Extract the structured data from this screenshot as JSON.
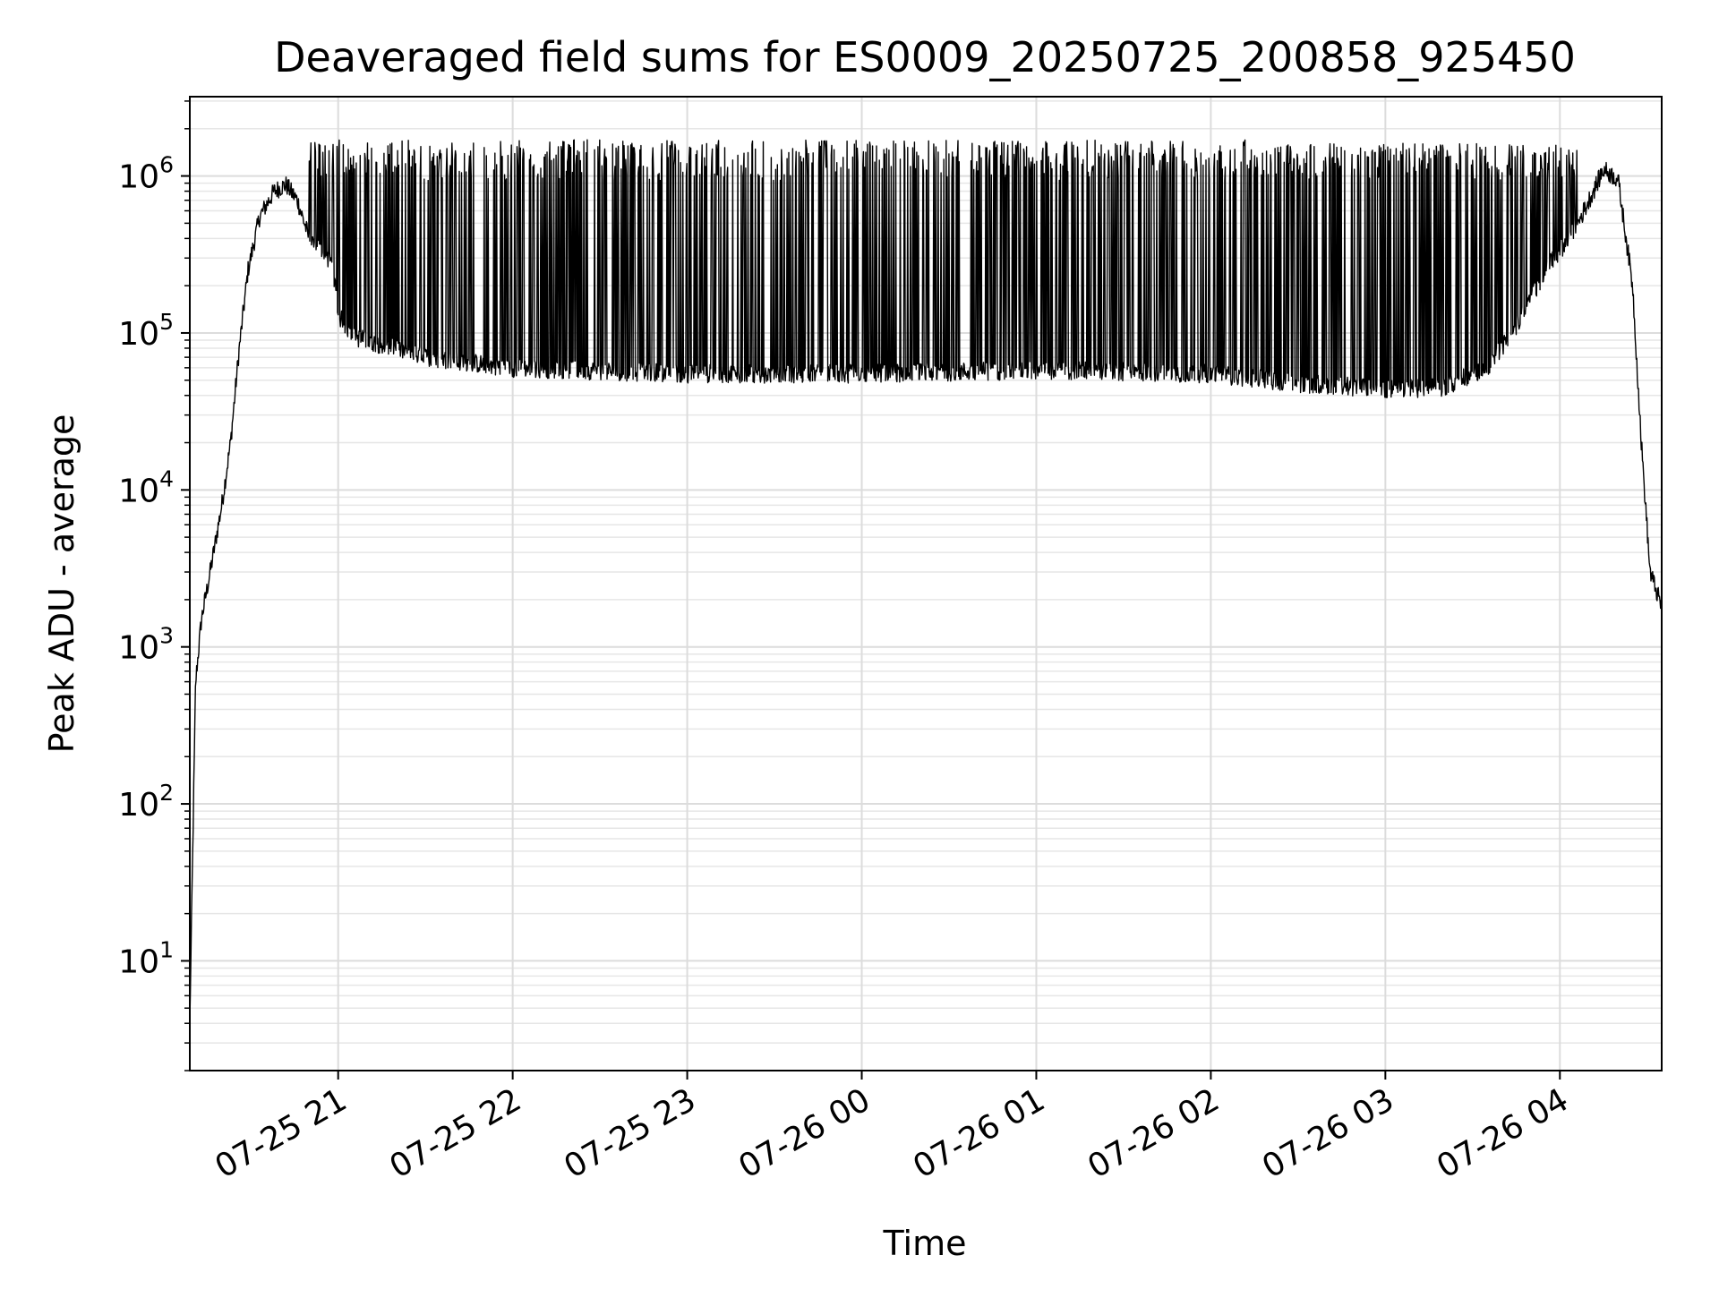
{
  "chart_data": {
    "type": "line",
    "title": "Deaveraged field sums for ES0009_20250725_200858_925450",
    "xlabel": "Time",
    "ylabel": "Peak ADU - average",
    "yscale": "log",
    "grid": true,
    "ylim": [
      2,
      3200000
    ],
    "xlim": [
      "2025-07-25 20:09",
      "2025-07-26 04:35"
    ],
    "xticks": [
      {
        "t": "2025-07-25 21:00",
        "label": "07-25 21"
      },
      {
        "t": "2025-07-25 22:00",
        "label": "07-25 22"
      },
      {
        "t": "2025-07-25 23:00",
        "label": "07-25 23"
      },
      {
        "t": "2025-07-26 00:00",
        "label": "07-26 00"
      },
      {
        "t": "2025-07-26 01:00",
        "label": "07-26 01"
      },
      {
        "t": "2025-07-26 02:00",
        "label": "07-26 02"
      },
      {
        "t": "2025-07-26 03:00",
        "label": "07-26 03"
      },
      {
        "t": "2025-07-26 04:00",
        "label": "07-26 04"
      }
    ],
    "yticks": [
      {
        "value": 10,
        "base": "10",
        "exp": "1"
      },
      {
        "value": 100,
        "base": "10",
        "exp": "2"
      },
      {
        "value": 1000,
        "base": "10",
        "exp": "3"
      },
      {
        "value": 10000,
        "base": "10",
        "exp": "4"
      },
      {
        "value": 100000,
        "base": "10",
        "exp": "5"
      },
      {
        "value": 1000000,
        "base": "10",
        "exp": "6"
      }
    ],
    "series": [
      {
        "color": "#000000",
        "baseline_points": [
          {
            "t": "2025-07-25 20:09",
            "y": 4
          },
          {
            "t": "2025-07-25 20:10",
            "y": 50
          },
          {
            "t": "2025-07-25 20:11",
            "y": 600
          },
          {
            "t": "2025-07-25 20:13",
            "y": 1500
          },
          {
            "t": "2025-07-25 20:16",
            "y": 3000
          },
          {
            "t": "2025-07-25 20:20",
            "y": 8000
          },
          {
            "t": "2025-07-25 20:23",
            "y": 20000
          },
          {
            "t": "2025-07-25 20:26",
            "y": 80000
          },
          {
            "t": "2025-07-25 20:29",
            "y": 250000
          },
          {
            "t": "2025-07-25 20:33",
            "y": 550000
          },
          {
            "t": "2025-07-25 20:38",
            "y": 800000
          },
          {
            "t": "2025-07-25 20:42",
            "y": 880000
          },
          {
            "t": "2025-07-25 20:46",
            "y": 700000
          },
          {
            "t": "2025-07-25 20:50",
            "y": 400000
          },
          {
            "t": "2025-07-25 20:58",
            "y": 280000
          },
          {
            "t": "2025-07-25 21:00",
            "y": 130000
          },
          {
            "t": "2025-07-25 21:05",
            "y": 95000
          },
          {
            "t": "2025-07-25 21:30",
            "y": 70000
          },
          {
            "t": "2025-07-25 22:00",
            "y": 60000
          },
          {
            "t": "2025-07-25 23:00",
            "y": 55000
          },
          {
            "t": "2025-07-26 00:00",
            "y": 55000
          },
          {
            "t": "2025-07-26 01:00",
            "y": 58000
          },
          {
            "t": "2025-07-26 02:00",
            "y": 55000
          },
          {
            "t": "2025-07-26 02:30",
            "y": 48000
          },
          {
            "t": "2025-07-26 03:00",
            "y": 44000
          },
          {
            "t": "2025-07-26 03:20",
            "y": 45000
          },
          {
            "t": "2025-07-26 03:35",
            "y": 60000
          },
          {
            "t": "2025-07-26 03:45",
            "y": 110000
          },
          {
            "t": "2025-07-26 03:55",
            "y": 250000
          },
          {
            "t": "2025-07-26 04:05",
            "y": 450000
          },
          {
            "t": "2025-07-26 04:10",
            "y": 700000
          },
          {
            "t": "2025-07-26 04:15",
            "y": 1100000
          },
          {
            "t": "2025-07-26 04:20",
            "y": 950000
          },
          {
            "t": "2025-07-26 04:25",
            "y": 200000
          },
          {
            "t": "2025-07-26 04:28",
            "y": 20000
          },
          {
            "t": "2025-07-26 04:31",
            "y": 3000
          },
          {
            "t": "2025-07-26 04:35",
            "y": 1800
          }
        ],
        "spike_range": [
          "2025-07-25 20:50",
          "2025-07-26 04:06"
        ],
        "spike_count": 620,
        "spike_max": 1700000
      }
    ]
  }
}
